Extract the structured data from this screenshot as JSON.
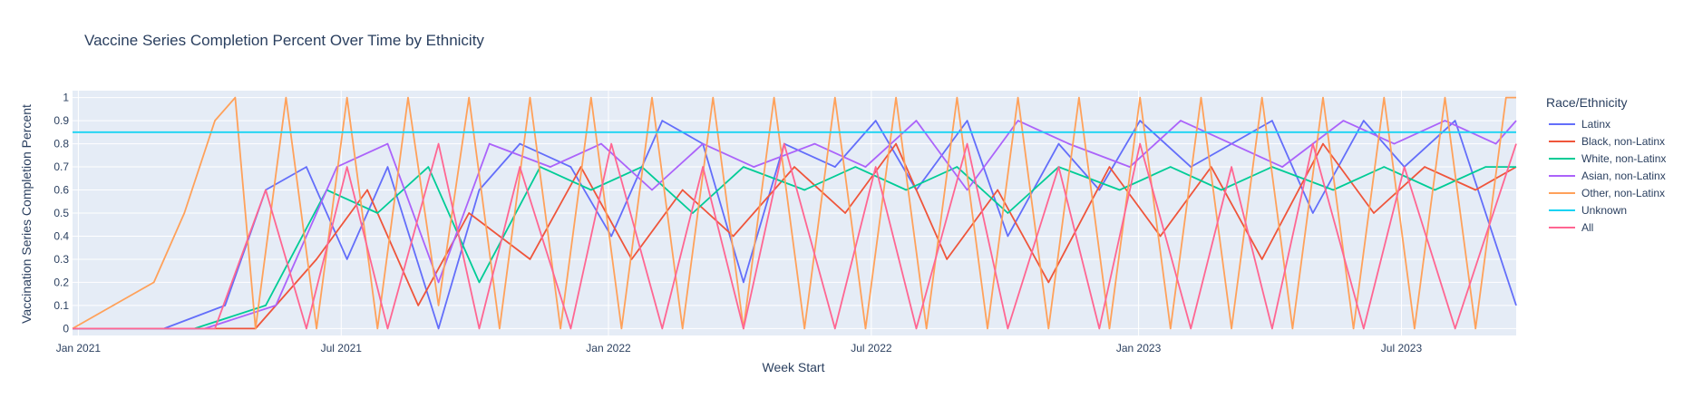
{
  "chart_data": {
    "type": "line",
    "title": "Vaccine Series Completion Percent Over Time by Ethnicity",
    "xlabel": "Week Start",
    "ylabel": "Vaccination Series Completion Percent",
    "x_range": [
      "2020-12-28",
      "2023-09-18"
    ],
    "y_range": [
      -0.03,
      1.03
    ],
    "x_ticks": [
      {
        "date": "2021-01-01",
        "label": "Jan 2021"
      },
      {
        "date": "2021-07-01",
        "label": "Jul 2021"
      },
      {
        "date": "2022-01-01",
        "label": "Jan 2022"
      },
      {
        "date": "2022-07-01",
        "label": "Jul 2022"
      },
      {
        "date": "2023-01-01",
        "label": "Jan 2023"
      },
      {
        "date": "2023-07-01",
        "label": "Jul 2023"
      }
    ],
    "y_ticks": [
      {
        "value": 0,
        "label": "0"
      },
      {
        "value": 0.1,
        "label": "0.1"
      },
      {
        "value": 0.2,
        "label": "0.2"
      },
      {
        "value": 0.3,
        "label": "0.3"
      },
      {
        "value": 0.4,
        "label": "0.4"
      },
      {
        "value": 0.5,
        "label": "0.5"
      },
      {
        "value": 0.6,
        "label": "0.6"
      },
      {
        "value": 0.7,
        "label": "0.7"
      },
      {
        "value": 0.8,
        "label": "0.8"
      },
      {
        "value": 0.9,
        "label": "0.9"
      },
      {
        "value": 1,
        "label": "1"
      }
    ],
    "legend": {
      "title": "Race/Ethnicity",
      "placement": "right"
    },
    "series": [
      {
        "name": "Latinx",
        "color": "#636efa",
        "x": [
          "2020-12-28",
          "2021-03-01",
          "2021-04-12",
          "2021-05-10",
          "2021-06-07",
          "2021-07-05",
          "2021-08-02",
          "2021-09-06",
          "2021-10-04",
          "2021-11-01",
          "2021-12-06",
          "2022-01-03",
          "2022-02-07",
          "2022-03-07",
          "2022-04-04",
          "2022-05-02",
          "2022-06-06",
          "2022-07-04",
          "2022-08-01",
          "2022-09-05",
          "2022-10-03",
          "2022-11-07",
          "2022-12-05",
          "2023-01-02",
          "2023-02-06",
          "2023-03-06",
          "2023-04-03",
          "2023-05-01",
          "2023-06-05",
          "2023-07-03",
          "2023-08-07",
          "2023-09-18"
        ],
        "y": [
          0,
          0,
          0.1,
          0.6,
          0.7,
          0.3,
          0.7,
          0,
          0.6,
          0.8,
          0.7,
          0.4,
          0.9,
          0.8,
          0.2,
          0.8,
          0.7,
          0.9,
          0.6,
          0.9,
          0.4,
          0.8,
          0.6,
          0.9,
          0.7,
          0.8,
          0.9,
          0.5,
          0.9,
          0.7,
          0.9,
          0.1
        ]
      },
      {
        "name": "Black, non-Latinx",
        "color": "#ef553b",
        "x": [
          "2020-12-28",
          "2021-03-15",
          "2021-05-03",
          "2021-06-14",
          "2021-07-19",
          "2021-08-23",
          "2021-09-27",
          "2021-11-08",
          "2021-12-13",
          "2022-01-17",
          "2022-02-21",
          "2022-03-28",
          "2022-05-09",
          "2022-06-13",
          "2022-07-18",
          "2022-08-22",
          "2022-09-26",
          "2022-10-31",
          "2022-12-12",
          "2023-01-16",
          "2023-02-20",
          "2023-03-27",
          "2023-05-08",
          "2023-06-12",
          "2023-07-17",
          "2023-08-21",
          "2023-09-18"
        ],
        "y": [
          0,
          0,
          0,
          0.3,
          0.6,
          0.1,
          0.5,
          0.3,
          0.7,
          0.3,
          0.6,
          0.4,
          0.7,
          0.5,
          0.8,
          0.3,
          0.6,
          0.2,
          0.7,
          0.4,
          0.7,
          0.3,
          0.8,
          0.5,
          0.7,
          0.6,
          0.7
        ]
      },
      {
        "name": "White, non-Latinx",
        "color": "#00cc96",
        "x": [
          "2020-12-28",
          "2021-03-22",
          "2021-05-10",
          "2021-06-21",
          "2021-07-26",
          "2021-08-30",
          "2021-10-04",
          "2021-11-15",
          "2021-12-20",
          "2022-01-24",
          "2022-02-28",
          "2022-04-04",
          "2022-05-16",
          "2022-06-20",
          "2022-07-25",
          "2022-08-29",
          "2022-10-03",
          "2022-11-07",
          "2022-12-19",
          "2023-01-23",
          "2023-02-27",
          "2023-04-03",
          "2023-05-15",
          "2023-06-19",
          "2023-07-24",
          "2023-08-28",
          "2023-09-18"
        ],
        "y": [
          0,
          0,
          0.1,
          0.6,
          0.5,
          0.7,
          0.2,
          0.7,
          0.6,
          0.7,
          0.5,
          0.7,
          0.6,
          0.7,
          0.6,
          0.7,
          0.5,
          0.7,
          0.6,
          0.7,
          0.6,
          0.7,
          0.6,
          0.7,
          0.6,
          0.7,
          0.7
        ]
      },
      {
        "name": "Asian, non-Latinx",
        "color": "#ab63fa",
        "x": [
          "2020-12-28",
          "2021-03-29",
          "2021-05-17",
          "2021-06-28",
          "2021-08-02",
          "2021-09-06",
          "2021-10-11",
          "2021-11-22",
          "2021-12-27",
          "2022-01-31",
          "2022-03-07",
          "2022-04-11",
          "2022-05-23",
          "2022-06-27",
          "2022-08-01",
          "2022-09-05",
          "2022-10-10",
          "2022-11-14",
          "2022-12-26",
          "2023-01-30",
          "2023-03-06",
          "2023-04-10",
          "2023-05-22",
          "2023-06-26",
          "2023-07-31",
          "2023-09-04",
          "2023-09-18"
        ],
        "y": [
          0,
          0,
          0.1,
          0.7,
          0.8,
          0.2,
          0.8,
          0.7,
          0.8,
          0.6,
          0.8,
          0.7,
          0.8,
          0.7,
          0.9,
          0.6,
          0.9,
          0.8,
          0.7,
          0.9,
          0.8,
          0.7,
          0.9,
          0.8,
          0.9,
          0.8,
          0.9
        ]
      },
      {
        "name": "Other, non-Latinx",
        "color": "#ffa15a",
        "x": [
          "2020-12-28",
          "2021-01-25",
          "2021-02-22",
          "2021-03-15",
          "2021-04-05",
          "2021-04-19",
          "2021-05-03",
          "2021-05-24",
          "2021-06-14",
          "2021-07-05",
          "2021-07-26",
          "2021-08-16",
          "2021-09-06",
          "2021-09-27",
          "2021-10-18",
          "2021-11-08",
          "2021-11-29",
          "2021-12-20",
          "2022-01-10",
          "2022-01-31",
          "2022-02-21",
          "2022-03-14",
          "2022-04-04",
          "2022-04-25",
          "2022-05-16",
          "2022-06-06",
          "2022-06-27",
          "2022-07-18",
          "2022-08-08",
          "2022-08-29",
          "2022-09-19",
          "2022-10-10",
          "2022-10-31",
          "2022-11-21",
          "2022-12-12",
          "2023-01-02",
          "2023-01-23",
          "2023-02-13",
          "2023-03-06",
          "2023-03-27",
          "2023-04-17",
          "2023-05-08",
          "2023-05-29",
          "2023-06-19",
          "2023-07-10",
          "2023-07-31",
          "2023-08-21",
          "2023-09-11",
          "2023-09-18"
        ],
        "y": [
          0,
          0.1,
          0.2,
          0.5,
          0.9,
          1,
          0,
          1,
          0,
          1,
          0,
          1,
          0.1,
          1,
          0,
          1,
          0,
          1,
          0,
          1,
          0,
          1,
          0,
          1,
          0,
          1,
          0,
          1,
          0,
          1,
          0,
          1,
          0,
          1,
          0,
          1,
          0,
          1,
          0,
          1,
          0,
          1,
          0,
          1,
          0,
          1,
          0,
          1,
          1
        ]
      },
      {
        "name": "Unknown",
        "color": "#19d3f3",
        "x": [
          "2020-12-28",
          "2023-09-18"
        ],
        "y": [
          0.85,
          0.85
        ]
      },
      {
        "name": "All",
        "color": "#ff6692",
        "x": [
          "2020-12-28",
          "2021-04-05",
          "2021-05-10",
          "2021-06-07",
          "2021-07-05",
          "2021-08-02",
          "2021-09-06",
          "2021-10-04",
          "2021-11-01",
          "2021-12-06",
          "2022-01-03",
          "2022-02-07",
          "2022-03-07",
          "2022-04-04",
          "2022-05-02",
          "2022-06-06",
          "2022-07-04",
          "2022-08-01",
          "2022-09-05",
          "2022-10-03",
          "2022-11-07",
          "2022-12-05",
          "2023-01-02",
          "2023-02-06",
          "2023-03-06",
          "2023-04-03",
          "2023-05-01",
          "2023-06-05",
          "2023-07-03",
          "2023-08-07",
          "2023-09-18"
        ],
        "y": [
          0,
          0,
          0.6,
          0,
          0.7,
          0,
          0.8,
          0,
          0.7,
          0,
          0.8,
          0,
          0.7,
          0,
          0.8,
          0,
          0.7,
          0,
          0.8,
          0,
          0.7,
          0,
          0.8,
          0,
          0.7,
          0,
          0.8,
          0,
          0.7,
          0,
          0.8
        ]
      }
    ]
  }
}
